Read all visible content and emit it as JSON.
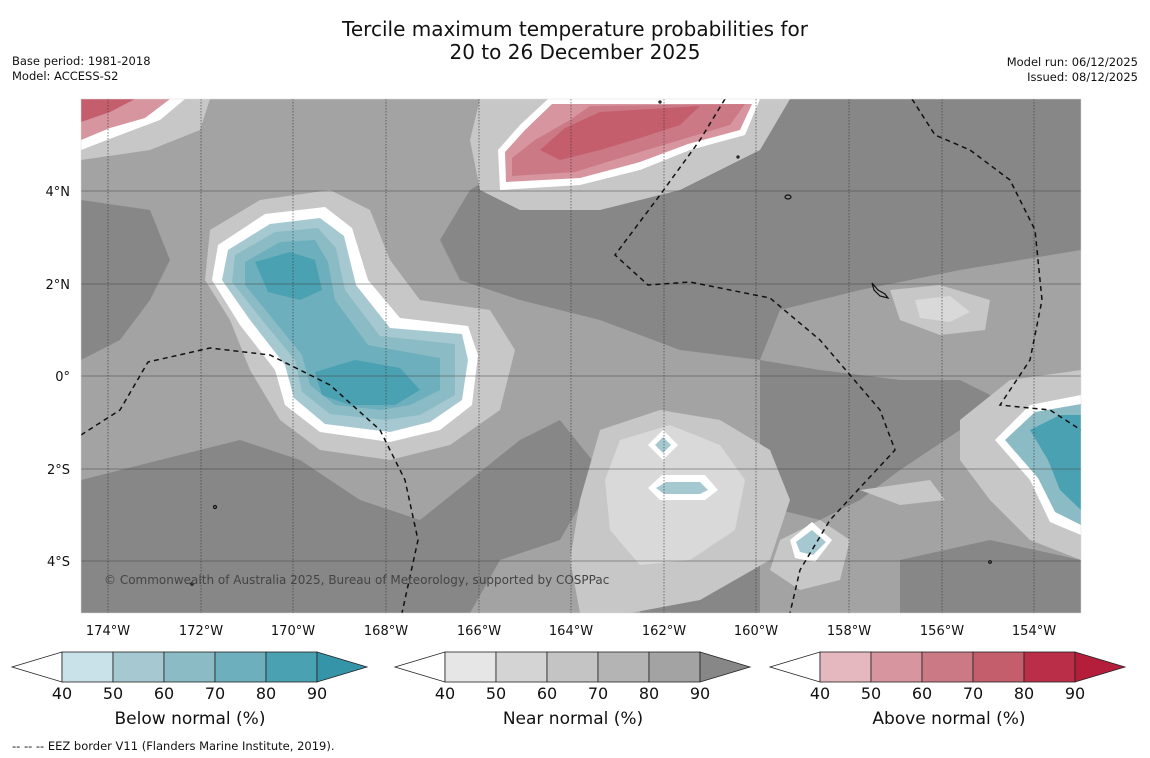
{
  "title": {
    "line1": "Tercile maximum temperature probabilities for",
    "line2": "20 to 26 December 2025"
  },
  "meta_left": {
    "base_period": "Base period: 1981-2018",
    "model": "Model: ACCESS-S2"
  },
  "meta_right": {
    "model_run": "Model run: 06/12/2025",
    "issued": "Issued: 08/12/2025"
  },
  "map": {
    "lon_labels": [
      "174°W",
      "172°W",
      "170°W",
      "168°W",
      "166°W",
      "164°W",
      "162°W",
      "160°W",
      "158°W",
      "156°W",
      "154°W"
    ],
    "lat_labels": [
      "4°N",
      "2°N",
      "0°",
      "2°S",
      "4°S"
    ],
    "copyright": "© Commonwealth of Australia 2025, Bureau of Meteorology, supported by COSPPac",
    "colors": {
      "near_base": "#a3a3a3",
      "near_dark": "#878787",
      "near_mid": "#b6b6b6",
      "near_light": "#c7c7c7",
      "near_lighter": "#d9d9d9",
      "blue_1": "#c9e1e8",
      "blue_2": "#a6c9d1",
      "blue_3": "#8bbcc5",
      "blue_4": "#6dafbd",
      "blue_5": "#4aa1b2",
      "red_1": "#e5b7bf",
      "red_2": "#d6959f",
      "red_3": "#cb7a85",
      "red_4": "#c45d6c"
    }
  },
  "colorbars": [
    {
      "label": "Below normal (%)",
      "ticks": [
        "40",
        "50",
        "60",
        "70",
        "80",
        "90"
      ],
      "colors": [
        "#ffffff",
        "#c9e1e8",
        "#a6c9d1",
        "#8bbcc5",
        "#6dafbd",
        "#4aa1b2",
        "#3594a8"
      ]
    },
    {
      "label": "Near normal (%)",
      "ticks": [
        "40",
        "50",
        "60",
        "70",
        "80",
        "90"
      ],
      "colors": [
        "#ffffff",
        "#e6e6e6",
        "#d4d4d4",
        "#c4c4c4",
        "#b4b4b4",
        "#a3a3a3",
        "#878787"
      ]
    },
    {
      "label": "Above normal (%)",
      "ticks": [
        "40",
        "50",
        "60",
        "70",
        "80",
        "90"
      ],
      "colors": [
        "#ffffff",
        "#e5b7bf",
        "#d6959f",
        "#cb7a85",
        "#c45d6c",
        "#ba2e48",
        "#b51e3a"
      ]
    }
  ],
  "footnote": "--  --  -- EEZ border V11 (Flanders Marine Institute, 2019)."
}
